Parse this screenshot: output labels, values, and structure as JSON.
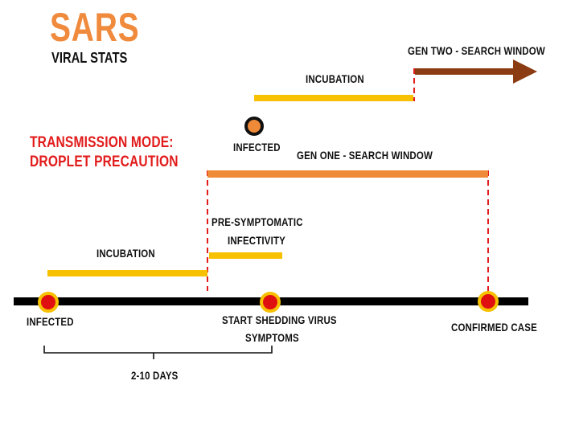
{
  "title": "SARS",
  "subtitle": "VIRAL STATS",
  "transmission": {
    "line1": "TRANSMISSION  MODE:",
    "line2": "DROPLET PRECAUTION"
  },
  "labels": {
    "gen_two": "GEN TWO - SEARCH WINDOW",
    "incubation_top": "INCUBATION",
    "infected_top": "INFECTED",
    "gen_one": "GEN ONE - SEARCH WINDOW",
    "presymptomatic_line1": "PRE-SYMPTOMATIC",
    "presymptomatic_line2": "INFECTIVITY",
    "incubation_bottom": "INCUBATION",
    "infected_bottom": "INFECTED",
    "shedding_line1": "START SHEDDING VIRUS",
    "shedding_line2": "SYMPTOMS",
    "confirmed": "CONFIRMED CASE",
    "days": "2-10 DAYS"
  },
  "colors": {
    "title_orange": "#f08a3c",
    "incubation_yellow": "#f7c100",
    "gen_one_orange": "#ef8a38",
    "gen_two_brown": "#8b3c12",
    "timeline_black": "#000000",
    "marker_red": "#e01010",
    "dashed_red": "#e21b1b"
  }
}
